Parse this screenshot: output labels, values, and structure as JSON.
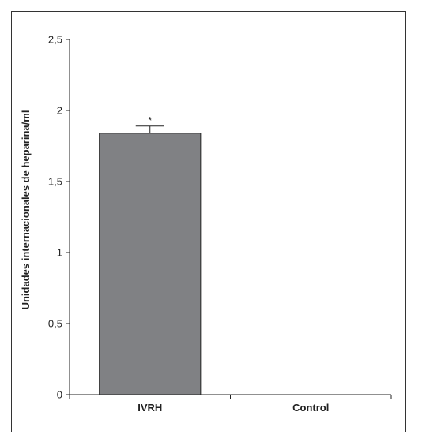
{
  "chart_data": {
    "type": "bar",
    "categories": [
      "IVRH",
      "Control"
    ],
    "values": [
      1.84,
      0
    ],
    "error": [
      0.05,
      0
    ],
    "annotations": [
      "*",
      ""
    ],
    "ylabel": "Unidades internacionales de heparina/ml",
    "xlabel": "",
    "title": "",
    "ylim": [
      0,
      2.5
    ],
    "yticks": [
      {
        "value": 0,
        "label": "0"
      },
      {
        "value": 0.5,
        "label": "0,5"
      },
      {
        "value": 1,
        "label": "1"
      },
      {
        "value": 1.5,
        "label": "1,5"
      },
      {
        "value": 2,
        "label": "2"
      },
      {
        "value": 2.5,
        "label": "2,5"
      }
    ],
    "grid": false,
    "bar_color": "#808184"
  }
}
